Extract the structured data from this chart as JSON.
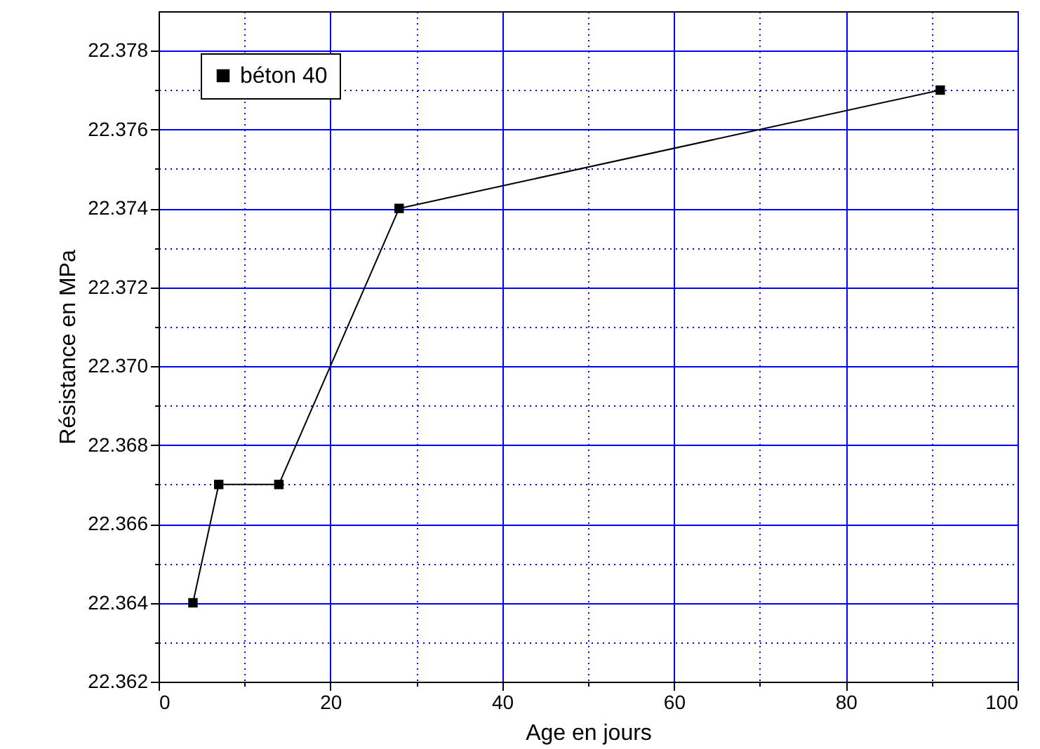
{
  "chart_data": {
    "type": "line",
    "xlabel": "Age en jours",
    "ylabel": "Résistance en MPa",
    "x": [
      4,
      7,
      14,
      28,
      91
    ],
    "series": [
      {
        "name": "béton 40",
        "color": "#000000",
        "values": [
          22.364,
          22.367,
          22.367,
          22.374,
          22.377
        ]
      }
    ],
    "xlim": [
      0,
      100
    ],
    "xticks": [
      0,
      {
        "value": 10,
        "label": null
      },
      20,
      {
        "value": 30,
        "label": null
      },
      40,
      {
        "value": 50,
        "label": null
      },
      60,
      {
        "value": 70,
        "label": null
      },
      80,
      {
        "value": 90,
        "label": null
      },
      100
    ],
    "ylim": [
      22.362,
      22.379
    ],
    "yticks": [
      {
        "value": 22.362,
        "label": "22.362"
      },
      {
        "value": 22.363,
        "label": null
      },
      {
        "value": 22.364,
        "label": "22.364"
      },
      {
        "value": 22.365,
        "label": null
      },
      {
        "value": 22.366,
        "label": "22.366"
      },
      {
        "value": 22.367,
        "label": null
      },
      {
        "value": 22.368,
        "label": "22.368"
      },
      {
        "value": 22.369,
        "label": null
      },
      {
        "value": 22.37,
        "label": "22.370"
      },
      {
        "value": 22.371,
        "label": null
      },
      {
        "value": 22.372,
        "label": "22.372"
      },
      {
        "value": 22.373,
        "label": null
      },
      {
        "value": 22.374,
        "label": "22.374"
      },
      {
        "value": 22.375,
        "label": null
      },
      {
        "value": 22.376,
        "label": "22.376"
      },
      {
        "value": 22.377,
        "label": null
      },
      {
        "value": 22.378,
        "label": "22.378"
      }
    ],
    "grid": true,
    "legend": "top left",
    "marker": "square",
    "line_style": "solid"
  }
}
